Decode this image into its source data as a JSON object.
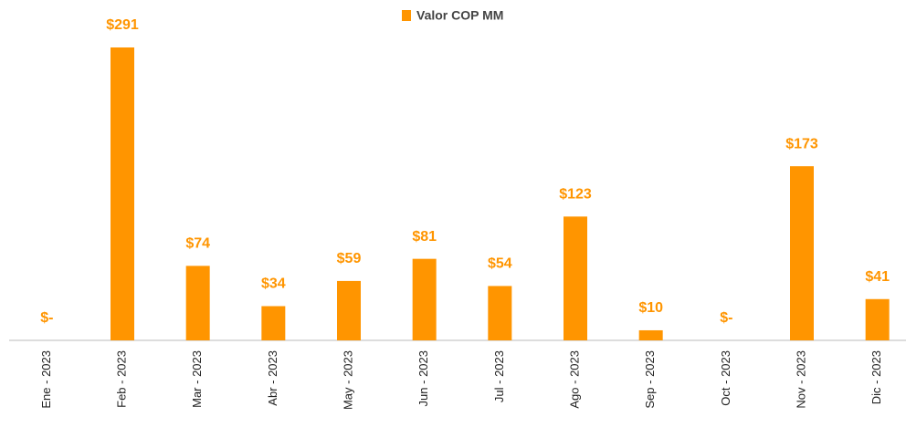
{
  "chart_data": {
    "type": "bar",
    "categories": [
      "Ene - 2023",
      "Feb - 2023",
      "Mar - 2023",
      "Abr - 2023",
      "May - 2023",
      "Jun - 2023",
      "Jul - 2023",
      "Ago - 2023",
      "Sep - 2023",
      "Oct - 2023",
      "Nov - 2023",
      "Dic - 2023"
    ],
    "series": [
      {
        "name": "Valor COP MM",
        "color": "#ff9500",
        "values": [
          0,
          291,
          74,
          34,
          59,
          81,
          54,
          123,
          10,
          0,
          173,
          41
        ],
        "value_labels": [
          "$-",
          "$291",
          "$74",
          "$34",
          "$59",
          "$81",
          "$54",
          "$123",
          "$10",
          "$-",
          "$173",
          "$41"
        ]
      }
    ],
    "legend": "top"
  }
}
